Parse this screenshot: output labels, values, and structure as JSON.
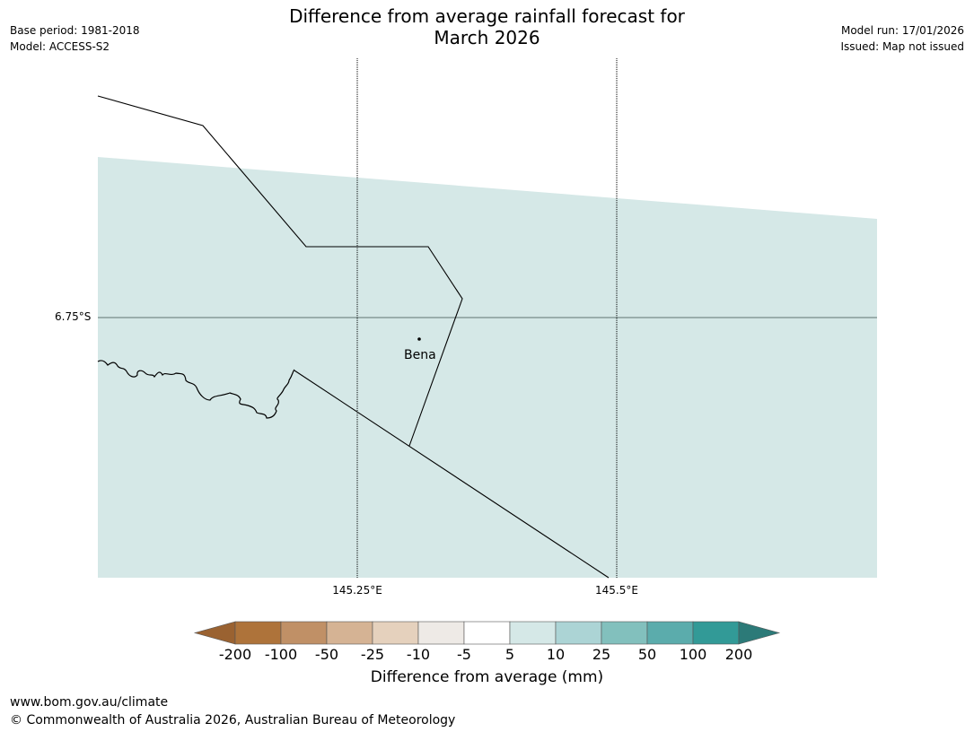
{
  "title_line1": "Difference from average rainfall forecast for",
  "title_line2": "March 2026",
  "left_meta": {
    "base_period": "Base period: 1981-2018",
    "model": "Model: ACCESS-S2"
  },
  "right_meta": {
    "model_run": "Model run: 17/01/2026",
    "issued": "Issued: Map not issued"
  },
  "map": {
    "latitude_labels": [
      "6.75°S"
    ],
    "longitude_labels": [
      "145.25°E",
      "145.5°E"
    ],
    "place": {
      "name": "Bena"
    }
  },
  "colorbar": {
    "title": "Difference from average (mm)",
    "tick_labels": [
      "-200",
      "-100",
      "-50",
      "-25",
      "-10",
      "-5",
      "5",
      "10",
      "25",
      "50",
      "100",
      "200"
    ],
    "colors": [
      "#9a6231",
      "#ae733a",
      "#c09066",
      "#d5b394",
      "#e5d1bd",
      "#eeeae6",
      "#ffffff",
      "#d5e8e7",
      "#acd4d5",
      "#82c0bd",
      "#5bacac",
      "#329a97",
      "#2c7a78"
    ]
  },
  "footer": {
    "url": "www.bom.gov.au/climate",
    "copyright": "© Commonwealth of Australia 2026, Australian Bureau of Meteorology"
  }
}
